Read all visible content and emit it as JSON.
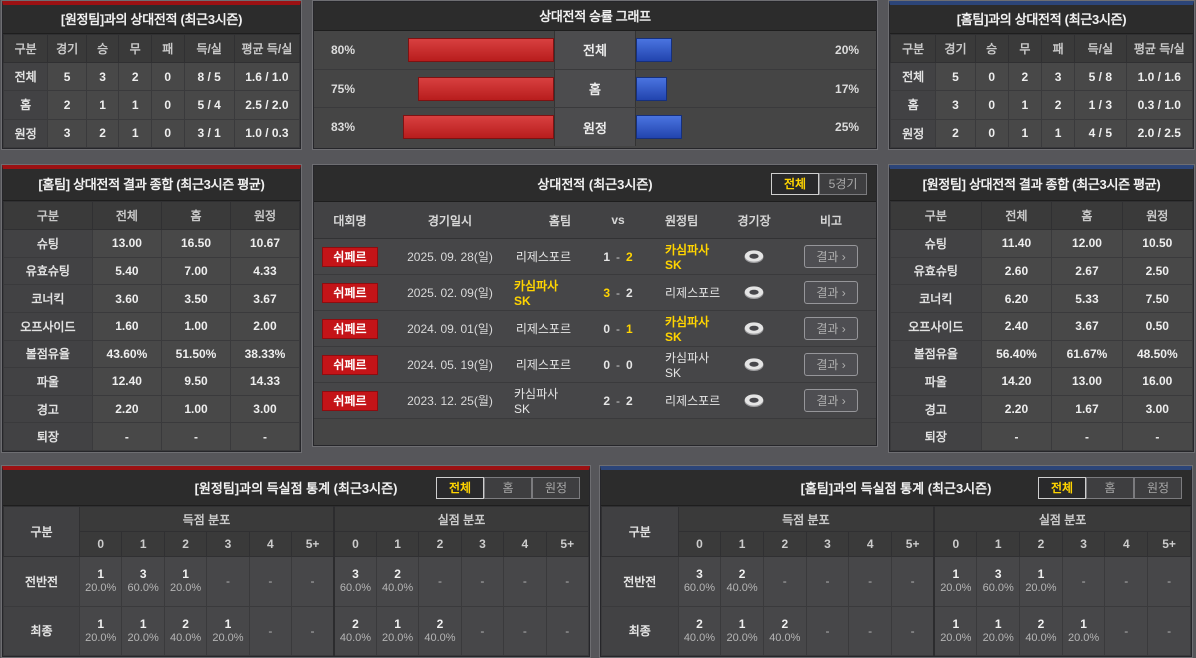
{
  "colors": {
    "red_accent": "#9c1113",
    "blue_accent": "#2c4579",
    "bar_red": "#c02020",
    "bar_blue": "#2a4fc2",
    "highlight_yellow": "#ffd400",
    "league_badge_red": "#c41418"
  },
  "top_left": {
    "title": "[원정팀]과의 상대전적 (최근3시즌)",
    "headers": [
      "구분",
      "경기",
      "승",
      "무",
      "패",
      "득/실",
      "평균 득/실"
    ],
    "rows": [
      [
        "전체",
        "5",
        "3",
        "2",
        "0",
        "8 / 5",
        "1.6 / 1.0"
      ],
      [
        "홈",
        "2",
        "1",
        "1",
        "0",
        "5 / 4",
        "2.5 / 2.0"
      ],
      [
        "원정",
        "3",
        "2",
        "1",
        "0",
        "3 / 1",
        "1.0 / 0.3"
      ]
    ]
  },
  "win_rate_chart": {
    "title": "상대전적 승률 그래프",
    "type": "bar",
    "categories": [
      "전체",
      "홈",
      "원정"
    ],
    "series": [
      {
        "name": "left-red",
        "values": [
          80,
          75,
          83
        ]
      },
      {
        "name": "right-blue",
        "values": [
          20,
          17,
          25
        ]
      }
    ],
    "left_labels": [
      "80%",
      "75%",
      "83%"
    ],
    "right_labels": [
      "20%",
      "17%",
      "25%"
    ]
  },
  "top_right": {
    "title": "[홈팀]과의 상대전적 (최근3시즌)",
    "headers": [
      "구분",
      "경기",
      "승",
      "무",
      "패",
      "득/실",
      "평균 득/실"
    ],
    "rows": [
      [
        "전체",
        "5",
        "0",
        "2",
        "3",
        "5 / 8",
        "1.0 / 1.6"
      ],
      [
        "홈",
        "3",
        "0",
        "1",
        "2",
        "1 / 3",
        "0.3 / 1.0"
      ],
      [
        "원정",
        "2",
        "0",
        "1",
        "1",
        "4 / 5",
        "2.0 / 2.5"
      ]
    ]
  },
  "mid_left": {
    "title": "[홈팀] 상대전적 결과 종합 (최근3시즌 평균)",
    "headers": [
      "구분",
      "전체",
      "홈",
      "원정"
    ],
    "rows": [
      [
        "슈팅",
        "13.00",
        "16.50",
        "10.67"
      ],
      [
        "유효슈팅",
        "5.40",
        "7.00",
        "4.33"
      ],
      [
        "코너킥",
        "3.60",
        "3.50",
        "3.67"
      ],
      [
        "오프사이드",
        "1.60",
        "1.00",
        "2.00"
      ],
      [
        "볼점유율",
        "43.60%",
        "51.50%",
        "38.33%"
      ],
      [
        "파울",
        "12.40",
        "9.50",
        "14.33"
      ],
      [
        "경고",
        "2.20",
        "1.00",
        "3.00"
      ],
      [
        "퇴장",
        "-",
        "-",
        "-"
      ]
    ]
  },
  "matches": {
    "title": "상대전적 (최근3시즌)",
    "tabs": [
      {
        "name": "tab-all",
        "label": "전체",
        "active": true
      },
      {
        "name": "tab-5games",
        "label": "5경기",
        "active": false
      }
    ],
    "headers": {
      "league": "대회명",
      "date": "경기일시",
      "home": "홈팀",
      "vs": "vs",
      "away": "원정팀",
      "venue": "경기장",
      "note": "비고"
    },
    "result_label": "결과",
    "rows": [
      {
        "league": "쉬페르",
        "date": "2025. 09. 28(일)",
        "home": "리제스포르",
        "home_win": false,
        "score_home": "1",
        "score_away": "2",
        "away": "카심파사SK",
        "away_win": true
      },
      {
        "league": "쉬페르",
        "date": "2025. 02. 09(일)",
        "home": "카심파사SK",
        "home_win": true,
        "score_home": "3",
        "score_away": "2",
        "away": "리제스포르",
        "away_win": false
      },
      {
        "league": "쉬페르",
        "date": "2024. 09. 01(일)",
        "home": "리제스포르",
        "home_win": false,
        "score_home": "0",
        "score_away": "1",
        "away": "카심파사SK",
        "away_win": true
      },
      {
        "league": "쉬페르",
        "date": "2024. 05. 19(일)",
        "home": "리제스포르",
        "home_win": false,
        "score_home": "0",
        "score_away": "0",
        "away": "카심파사SK",
        "away_win": false
      },
      {
        "league": "쉬페르",
        "date": "2023. 12. 25(월)",
        "home": "카심파사SK",
        "home_win": false,
        "score_home": "2",
        "score_away": "2",
        "away": "리제스포르",
        "away_win": false
      }
    ]
  },
  "mid_right": {
    "title": "[원정팀] 상대전적 결과 종합 (최근3시즌 평균)",
    "headers": [
      "구분",
      "전체",
      "홈",
      "원정"
    ],
    "rows": [
      [
        "슈팅",
        "11.40",
        "12.00",
        "10.50"
      ],
      [
        "유효슈팅",
        "2.60",
        "2.67",
        "2.50"
      ],
      [
        "코너킥",
        "6.20",
        "5.33",
        "7.50"
      ],
      [
        "오프사이드",
        "2.40",
        "3.67",
        "0.50"
      ],
      [
        "볼점유율",
        "56.40%",
        "61.67%",
        "48.50%"
      ],
      [
        "파울",
        "14.20",
        "13.00",
        "16.00"
      ],
      [
        "경고",
        "2.20",
        "1.67",
        "3.00"
      ],
      [
        "퇴장",
        "-",
        "-",
        "-"
      ]
    ]
  },
  "bottom_left": {
    "title": "[원정팀]과의 득실점 통계 (최근3시즌)",
    "tabs": [
      {
        "name": "tab-all",
        "label": "전체",
        "active": true
      },
      {
        "name": "tab-home",
        "label": "홈",
        "active": false
      },
      {
        "name": "tab-away",
        "label": "원정",
        "active": false
      }
    ],
    "col_group_label": "구분",
    "group_headers": [
      "득점 분포",
      "실점 분포"
    ],
    "score_headers": [
      "0",
      "1",
      "2",
      "3",
      "4",
      "5+"
    ],
    "rows": [
      {
        "label": "전반전",
        "scored": [
          {
            "count": "1",
            "pct": "20.0%"
          },
          {
            "count": "3",
            "pct": "60.0%"
          },
          {
            "count": "1",
            "pct": "20.0%"
          },
          null,
          null,
          null
        ],
        "conceded": [
          {
            "count": "3",
            "pct": "60.0%"
          },
          {
            "count": "2",
            "pct": "40.0%"
          },
          null,
          null,
          null,
          null
        ]
      },
      {
        "label": "최종",
        "scored": [
          {
            "count": "1",
            "pct": "20.0%"
          },
          {
            "count": "1",
            "pct": "20.0%"
          },
          {
            "count": "2",
            "pct": "40.0%"
          },
          {
            "count": "1",
            "pct": "20.0%"
          },
          null,
          null
        ],
        "conceded": [
          {
            "count": "2",
            "pct": "40.0%"
          },
          {
            "count": "1",
            "pct": "20.0%"
          },
          {
            "count": "2",
            "pct": "40.0%"
          },
          null,
          null,
          null
        ]
      }
    ]
  },
  "bottom_right": {
    "title": "[홈팀]과의 득실점 통계 (최근3시즌)",
    "tabs": [
      {
        "name": "tab-all",
        "label": "전체",
        "active": true
      },
      {
        "name": "tab-home",
        "label": "홈",
        "active": false
      },
      {
        "name": "tab-away",
        "label": "원정",
        "active": false
      }
    ],
    "col_group_label": "구분",
    "group_headers": [
      "득점 분포",
      "실점 분포"
    ],
    "score_headers": [
      "0",
      "1",
      "2",
      "3",
      "4",
      "5+"
    ],
    "rows": [
      {
        "label": "전반전",
        "scored": [
          {
            "count": "3",
            "pct": "60.0%"
          },
          {
            "count": "2",
            "pct": "40.0%"
          },
          null,
          null,
          null,
          null
        ],
        "conceded": [
          {
            "count": "1",
            "pct": "20.0%"
          },
          {
            "count": "3",
            "pct": "60.0%"
          },
          {
            "count": "1",
            "pct": "20.0%"
          },
          null,
          null,
          null
        ]
      },
      {
        "label": "최종",
        "scored": [
          {
            "count": "2",
            "pct": "40.0%"
          },
          {
            "count": "1",
            "pct": "20.0%"
          },
          {
            "count": "2",
            "pct": "40.0%"
          },
          null,
          null,
          null
        ],
        "conceded": [
          {
            "count": "1",
            "pct": "20.0%"
          },
          {
            "count": "1",
            "pct": "20.0%"
          },
          {
            "count": "2",
            "pct": "40.0%"
          },
          {
            "count": "1",
            "pct": "20.0%"
          },
          null,
          null
        ]
      }
    ]
  }
}
